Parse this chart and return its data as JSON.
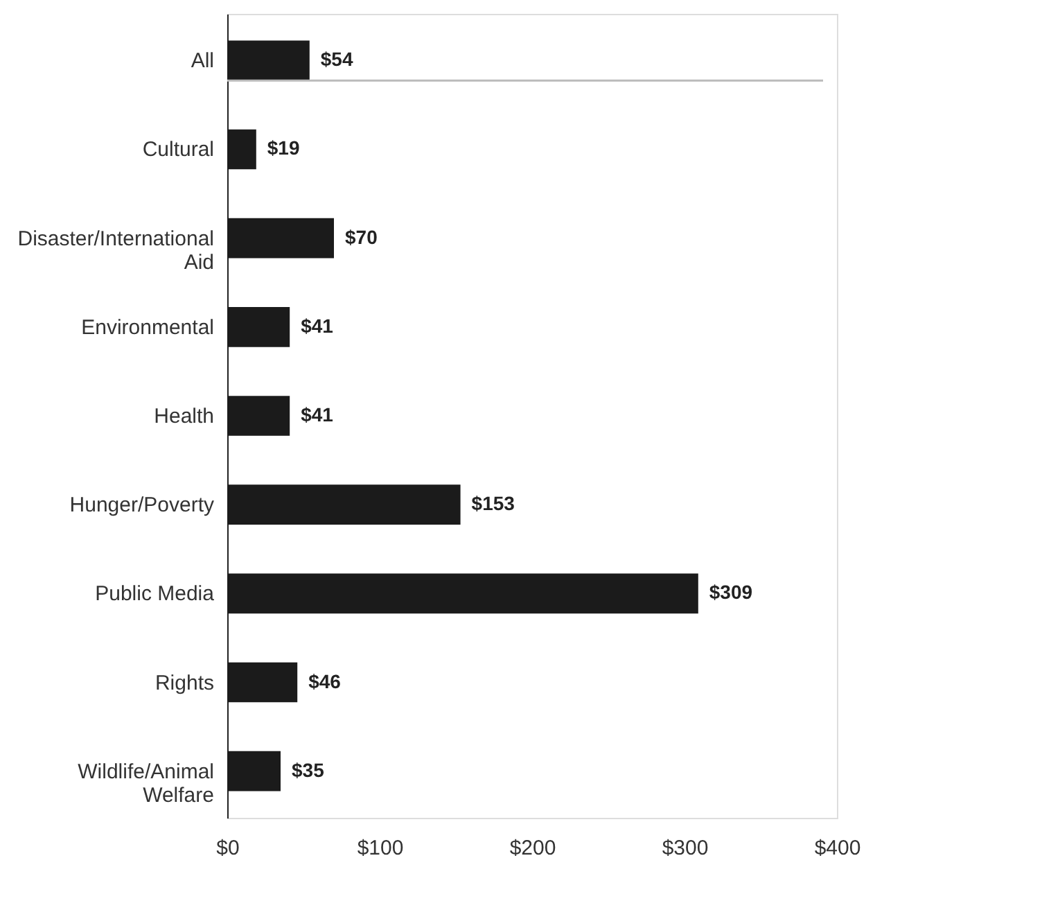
{
  "chart_data": {
    "type": "bar",
    "orientation": "horizontal",
    "categories": [
      "All",
      "Cultural",
      "Disaster/International Aid",
      "Environmental",
      "Health",
      "Hunger/Poverty",
      "Public Media",
      "Rights",
      "Wildlife/Animal Welfare"
    ],
    "values": [
      54,
      19,
      70,
      41,
      41,
      153,
      309,
      46,
      35
    ],
    "color": "#1b1b1b",
    "value_labels": [
      "$54",
      "$19",
      "$70",
      "$41",
      "$41",
      "$153",
      "$309",
      "$46",
      "$35"
    ],
    "xlim": [
      0,
      400
    ],
    "xticks": [
      {
        "value": 0,
        "label": "$0"
      },
      {
        "value": 100,
        "label": "$100"
      },
      {
        "value": 200,
        "label": "$200"
      },
      {
        "value": 300,
        "label": "$300"
      },
      {
        "value": 400,
        "label": "$400"
      }
    ],
    "ref_lines": [
      {
        "axis": "y",
        "value": "All",
        "color": "#bbbbbb"
      }
    ],
    "grid": false
  }
}
